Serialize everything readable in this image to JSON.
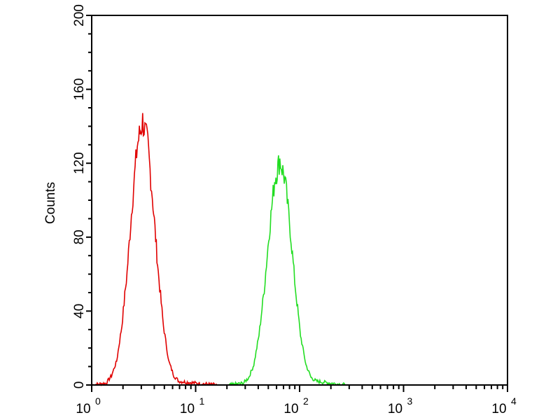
{
  "chart_data": {
    "type": "line",
    "title": "",
    "xlabel": "",
    "ylabel": "Counts",
    "x_scale": "log",
    "xlim": [
      1,
      10000
    ],
    "ylim": [
      0,
      200
    ],
    "x_ticks": [
      {
        "base": "10",
        "exp": "0"
      },
      {
        "base": "10",
        "exp": "1"
      },
      {
        "base": "10",
        "exp": "2"
      },
      {
        "base": "10",
        "exp": "3"
      },
      {
        "base": "10",
        "exp": "4"
      }
    ],
    "y_ticks": [
      "0",
      "40",
      "80",
      "120",
      "160",
      "200"
    ],
    "grid": false,
    "series": [
      {
        "color": "#e00000",
        "x": [
          1,
          1.38,
          1.55,
          1.74,
          1.95,
          2.19,
          2.45,
          2.75,
          3.09,
          3.47,
          3.89,
          4.37,
          4.9,
          5.5,
          6.17,
          6.9,
          10,
          16,
          20
        ],
        "y": [
          0,
          1,
          5,
          13,
          32,
          61,
          98,
          130,
          143,
          130,
          98,
          61,
          32,
          13,
          5,
          2,
          1,
          0,
          0
        ]
      },
      {
        "color": "#22dd22",
        "x": [
          21,
          28.8,
          32.4,
          36.3,
          40.7,
          45.7,
          51.3,
          57.5,
          64.6,
          72.4,
          81.3,
          91.2,
          102,
          115,
          129,
          145,
          200,
          282
        ],
        "y": [
          0,
          1,
          4,
          11,
          27,
          52,
          84,
          111,
          122,
          111,
          84,
          52,
          27,
          11,
          4,
          2,
          1,
          0
        ]
      }
    ]
  }
}
